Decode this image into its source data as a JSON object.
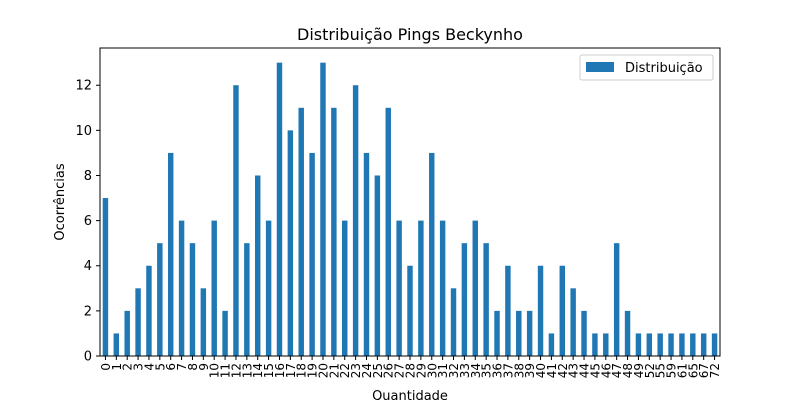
{
  "chart_data": {
    "type": "bar",
    "title": "Distribuição Pings Beckynho",
    "xlabel": "Quantidade",
    "ylabel": "Ocorrências",
    "ylim": [
      0,
      13.65
    ],
    "yticks": [
      0,
      2,
      4,
      6,
      8,
      10,
      12
    ],
    "grid": false,
    "legend_position": "top-right",
    "categories": [
      "0",
      "1",
      "2",
      "3",
      "4",
      "5",
      "6",
      "7",
      "8",
      "9",
      "10",
      "11",
      "12",
      "13",
      "14",
      "15",
      "16",
      "17",
      "18",
      "19",
      "20",
      "21",
      "22",
      "23",
      "24",
      "25",
      "26",
      "27",
      "28",
      "29",
      "30",
      "31",
      "32",
      "33",
      "34",
      "35",
      "36",
      "37",
      "38",
      "39",
      "40",
      "41",
      "42",
      "43",
      "44",
      "45",
      "46",
      "47",
      "48",
      "49",
      "52",
      "55",
      "59",
      "61",
      "65",
      "67",
      "72"
    ],
    "series": [
      {
        "name": "Distribuição",
        "color": "#1f77b4",
        "values": [
          7,
          1,
          2,
          3,
          4,
          5,
          9,
          6,
          5,
          3,
          6,
          2,
          12,
          5,
          8,
          6,
          13,
          10,
          11,
          9,
          13,
          11,
          6,
          12,
          9,
          8,
          11,
          6,
          4,
          6,
          9,
          6,
          3,
          5,
          6,
          5,
          2,
          4,
          2,
          2,
          4,
          1,
          4,
          3,
          2,
          1,
          1,
          5,
          2,
          1,
          1,
          1,
          1,
          1,
          1,
          1,
          1
        ]
      }
    ]
  }
}
